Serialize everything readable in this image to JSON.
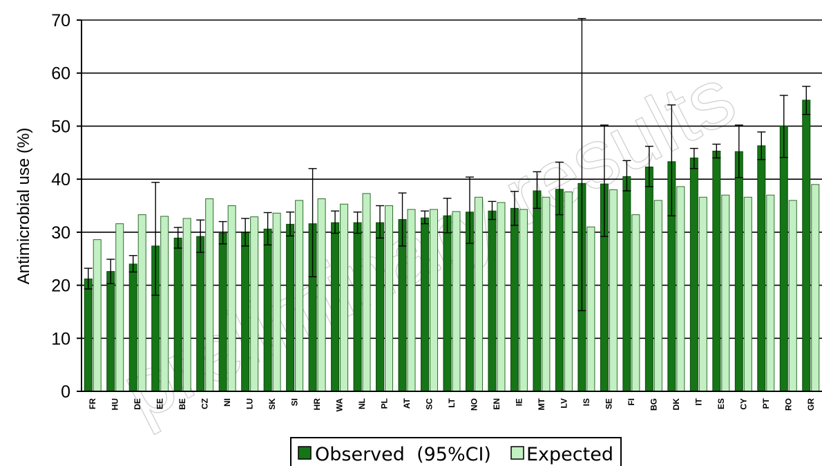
{
  "chart_data": {
    "type": "bar",
    "ylabel": "Antimicrobial use (%)",
    "ylim": [
      0,
      70
    ],
    "yticks": [
      0,
      10,
      20,
      30,
      40,
      50,
      60,
      70
    ],
    "grid": true,
    "watermark": "preliminary results",
    "categories": [
      "FR",
      "HU",
      "DE",
      "EE",
      "BE",
      "CZ",
      "NI",
      "LU",
      "SK",
      "SI",
      "HR",
      "WA",
      "NL",
      "PL",
      "AT",
      "SC",
      "LT",
      "NO",
      "EN",
      "IE",
      "MT",
      "LV",
      "IS",
      "SE",
      "FI",
      "BG",
      "DK",
      "IT",
      "ES",
      "CY",
      "PT",
      "RO",
      "GR"
    ],
    "series": [
      {
        "name": "Observed  (95%CI)",
        "color": "#167516",
        "values": [
          21.2,
          22.6,
          24.0,
          27.4,
          28.9,
          29.2,
          29.8,
          29.9,
          30.6,
          31.5,
          31.6,
          31.8,
          31.8,
          31.8,
          32.4,
          32.7,
          33.1,
          33.8,
          34.0,
          34.5,
          37.8,
          38.1,
          39.2,
          39.1,
          40.5,
          42.3,
          43.3,
          44.0,
          45.3,
          45.2,
          46.3,
          50.0,
          54.9
        ],
        "ci_low": [
          19.3,
          20.3,
          22.5,
          18.1,
          27.0,
          26.2,
          27.8,
          27.4,
          27.6,
          29.3,
          21.6,
          29.8,
          29.8,
          28.9,
          27.4,
          31.6,
          29.9,
          27.9,
          32.4,
          31.3,
          34.5,
          33.3,
          15.2,
          29.2,
          37.8,
          38.6,
          33.1,
          42.0,
          44.0,
          40.3,
          43.7,
          44.1,
          52.2
        ],
        "ci_high": [
          23.2,
          24.9,
          25.6,
          39.4,
          30.9,
          32.3,
          32.0,
          32.6,
          33.7,
          33.8,
          42.0,
          34.0,
          33.8,
          35.0,
          37.4,
          34.0,
          36.4,
          40.4,
          35.8,
          37.7,
          41.4,
          43.2,
          70.3,
          50.2,
          43.5,
          46.2,
          54.0,
          45.8,
          46.6,
          50.2,
          48.9,
          55.8,
          57.5
        ]
      },
      {
        "name": "Expected",
        "color": "#c2f0c2",
        "values": [
          28.6,
          31.6,
          33.3,
          33.0,
          32.6,
          36.3,
          35.0,
          32.9,
          33.6,
          36.0,
          36.3,
          35.3,
          37.3,
          35.0,
          34.3,
          34.3,
          33.9,
          36.6,
          35.6,
          34.3,
          36.6,
          37.6,
          31.0,
          38.0,
          33.3,
          36.0,
          38.6,
          36.6,
          37.0,
          36.6,
          37.0,
          36.0,
          39.0
        ]
      }
    ],
    "legend_position": "bottom-center"
  }
}
